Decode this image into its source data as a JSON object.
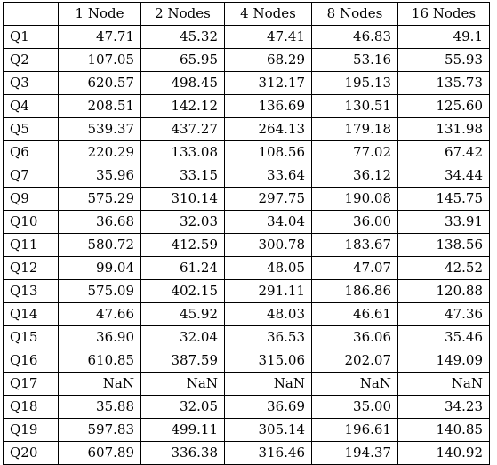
{
  "table": {
    "corner": "",
    "columns": [
      "1 Node",
      "2 Nodes",
      "4 Nodes",
      "8 Nodes",
      "16 Nodes"
    ],
    "rows": [
      {
        "label": "Q1",
        "values": [
          "47.71",
          "45.32",
          "47.41",
          "46.83",
          "49.1"
        ]
      },
      {
        "label": "Q2",
        "values": [
          "107.05",
          "65.95",
          "68.29",
          "53.16",
          "55.93"
        ]
      },
      {
        "label": "Q3",
        "values": [
          "620.57",
          "498.45",
          "312.17",
          "195.13",
          "135.73"
        ]
      },
      {
        "label": "Q4",
        "values": [
          "208.51",
          "142.12",
          "136.69",
          "130.51",
          "125.60"
        ]
      },
      {
        "label": "Q5",
        "values": [
          "539.37",
          "437.27",
          "264.13",
          "179.18",
          "131.98"
        ]
      },
      {
        "label": "Q6",
        "values": [
          "220.29",
          "133.08",
          "108.56",
          "77.02",
          "67.42"
        ]
      },
      {
        "label": "Q7",
        "values": [
          "35.96",
          "33.15",
          "33.64",
          "36.12",
          "34.44"
        ]
      },
      {
        "label": "Q9",
        "values": [
          "575.29",
          "310.14",
          "297.75",
          "190.08",
          "145.75"
        ]
      },
      {
        "label": "Q10",
        "values": [
          "36.68",
          "32.03",
          "34.04",
          "36.00",
          "33.91"
        ]
      },
      {
        "label": "Q11",
        "values": [
          "580.72",
          "412.59",
          "300.78",
          "183.67",
          "138.56"
        ]
      },
      {
        "label": "Q12",
        "values": [
          "99.04",
          "61.24",
          "48.05",
          "47.07",
          "42.52"
        ]
      },
      {
        "label": "Q13",
        "values": [
          "575.09",
          "402.15",
          "291.11",
          "186.86",
          "120.88"
        ]
      },
      {
        "label": "Q14",
        "values": [
          "47.66",
          "45.92",
          "48.03",
          "46.61",
          "47.36"
        ]
      },
      {
        "label": "Q15",
        "values": [
          "36.90",
          "32.04",
          "36.53",
          "36.06",
          "35.46"
        ]
      },
      {
        "label": "Q16",
        "values": [
          "610.85",
          "387.59",
          "315.06",
          "202.07",
          "149.09"
        ]
      },
      {
        "label": "Q17",
        "values": [
          "NaN",
          "NaN",
          "NaN",
          "NaN",
          "NaN"
        ]
      },
      {
        "label": "Q18",
        "values": [
          "35.88",
          "32.05",
          "36.69",
          "35.00",
          "34.23"
        ]
      },
      {
        "label": "Q19",
        "values": [
          "597.83",
          "499.11",
          "305.14",
          "196.61",
          "140.85"
        ]
      },
      {
        "label": "Q20",
        "values": [
          "607.89",
          "336.38",
          "316.46",
          "194.37",
          "140.92"
        ]
      }
    ]
  }
}
